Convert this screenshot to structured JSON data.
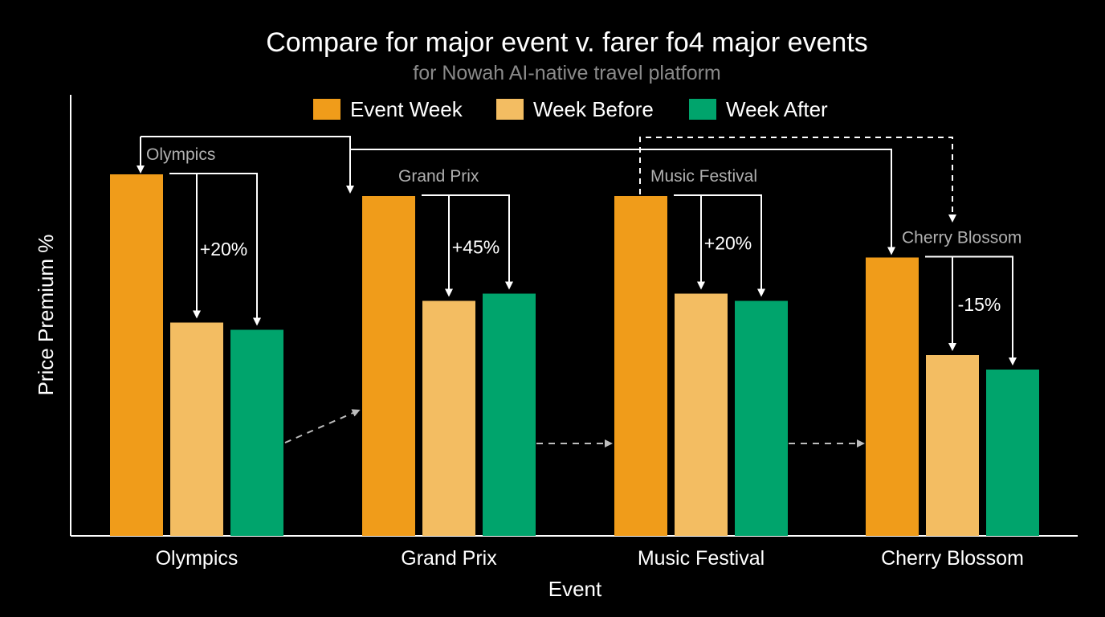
{
  "chart_data": {
    "type": "bar",
    "title": "Compare for major event v. farer fo4 major events",
    "subtitle": "for Nowah AI-native travel platform",
    "xlabel": "Event",
    "ylabel": "Price Premium %",
    "ylim": [
      0,
      100
    ],
    "grid": false,
    "legend_position": "top-center",
    "categories": [
      "Olympics",
      "Grand Prix",
      "Music Festival",
      "Cherry Blossom"
    ],
    "series": [
      {
        "name": "Event Week",
        "color": "#f09c1a",
        "values": [
          100,
          94,
          94,
          77
        ]
      },
      {
        "name": "Week Before",
        "color": "#f3bd62",
        "values": [
          59,
          65,
          67,
          50
        ]
      },
      {
        "name": "Week After",
        "color": "#00a46c",
        "values": [
          57,
          67,
          65,
          46
        ]
      }
    ],
    "annotations": {
      "event_labels": [
        "Olympics",
        "Grand Prix",
        "Music Festival",
        "Cherry Blossom"
      ],
      "deltas": [
        "+20%",
        "+45%",
        "+20%",
        "-15%"
      ]
    }
  }
}
